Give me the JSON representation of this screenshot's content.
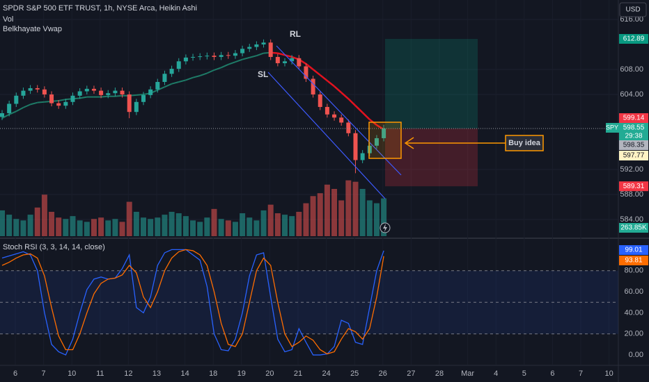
{
  "chart_data": [
    {
      "type": "candlestick",
      "title": "SPDR S&P 500 ETF TRUST, 1h, NYSE Arca, Heikin Ashi",
      "symbol": "SPY",
      "currency": "USD",
      "countdown": "29:38",
      "xticks": [
        "6",
        "7",
        "10",
        "11",
        "12",
        "13",
        "14",
        "18",
        "19",
        "20",
        "21",
        "24",
        "25",
        "26",
        "27",
        "28",
        "Mar",
        "4",
        "5",
        "6",
        "7",
        "10"
      ],
      "open": [
        600.4,
        601.0,
        602.5,
        603.8,
        604.6,
        605.0,
        604.8,
        604.0,
        602.6,
        602.2,
        602.8,
        603.8,
        604.5,
        604.9,
        604.6,
        603.9,
        604.2,
        604.6,
        604.0,
        601.2,
        602.8,
        603.9,
        604.8,
        606.0,
        607.3,
        608.1,
        609.3,
        609.9,
        610.0,
        610.1,
        610.2,
        610.0,
        610.3,
        610.2,
        610.6,
        611.3,
        611.6,
        612.0,
        612.3,
        610.0,
        609.0,
        609.3,
        609.8,
        608.5,
        606.5,
        604.0,
        602.0,
        600.8,
        600.3,
        599.5,
        597.8,
        593.5,
        594.6,
        595.8,
        597.0
      ],
      "high": [
        601.5,
        603.0,
        604.3,
        605.1,
        605.5,
        605.5,
        605.3,
        604.5,
        603.1,
        603.3,
        604.3,
        605.0,
        605.4,
        605.4,
        605.1,
        604.7,
        605.1,
        605.1,
        604.5,
        603.3,
        604.4,
        605.3,
        606.5,
        607.8,
        608.6,
        609.8,
        610.4,
        610.5,
        610.6,
        610.7,
        610.7,
        610.8,
        610.8,
        611.1,
        611.8,
        612.1,
        612.5,
        612.8,
        612.8,
        610.5,
        609.8,
        610.3,
        610.3,
        609.0,
        607.0,
        604.5,
        602.5,
        601.3,
        600.8,
        600.0,
        598.3,
        595.1,
        596.3,
        597.5,
        599.14
      ],
      "low": [
        599.9,
        600.5,
        602.0,
        603.3,
        604.1,
        604.3,
        603.5,
        602.1,
        601.7,
        601.7,
        602.3,
        603.3,
        604.0,
        604.1,
        603.4,
        603.4,
        603.7,
        603.5,
        600.2,
        600.7,
        602.3,
        603.4,
        604.3,
        605.5,
        606.8,
        607.6,
        608.8,
        609.4,
        609.5,
        609.6,
        609.5,
        609.5,
        609.7,
        609.7,
        610.1,
        610.8,
        611.1,
        611.5,
        609.5,
        608.5,
        608.5,
        608.8,
        608.0,
        606.0,
        603.5,
        601.5,
        600.3,
        599.8,
        599.0,
        597.3,
        591.4,
        593.0,
        594.1,
        595.3,
        596.5
      ],
      "close": [
        601.0,
        602.5,
        603.8,
        604.6,
        605.0,
        604.8,
        604.0,
        602.6,
        602.2,
        602.8,
        603.8,
        604.5,
        604.9,
        604.6,
        603.9,
        604.2,
        604.6,
        604.0,
        601.2,
        602.8,
        603.9,
        604.8,
        606.0,
        607.3,
        608.1,
        609.3,
        609.9,
        610.0,
        610.1,
        610.2,
        610.0,
        610.3,
        610.2,
        610.6,
        611.3,
        611.6,
        612.0,
        612.3,
        610.0,
        609.0,
        609.3,
        609.8,
        608.5,
        606.5,
        604.0,
        602.0,
        600.8,
        600.3,
        599.5,
        597.8,
        593.5,
        594.6,
        595.8,
        597.0,
        598.55
      ],
      "up_color": "#26a69a",
      "down_color": "#ef5350",
      "volume": {
        "name": "Vol",
        "ylim": [
          0,
          1650
        ],
        "values": [
          180,
          150,
          120,
          110,
          150,
          200,
          290,
          170,
          130,
          120,
          140,
          110,
          100,
          120,
          130,
          110,
          120,
          100,
          240,
          170,
          130,
          120,
          130,
          150,
          170,
          160,
          140,
          110,
          100,
          130,
          190,
          120,
          110,
          100,
          160,
          130,
          110,
          180,
          220,
          160,
          150,
          140,
          170,
          230,
          280,
          300,
          360,
          330,
          250,
          390,
          380,
          330,
          250,
          230,
          263.85
        ],
        "last_label": "263.85K"
      },
      "vwap": {
        "name": "Belkhayate Vwap",
        "color": "#1e7b67",
        "down_color": "#e3121f",
        "values": [
          600.2,
          600.8,
          601.3,
          601.9,
          602.4,
          602.7,
          602.8,
          602.9,
          603.0,
          603.2,
          603.3,
          603.4,
          603.6,
          603.6,
          603.6,
          603.7,
          603.7,
          603.8,
          603.8,
          603.9,
          604.0,
          604.2,
          604.7,
          605.2,
          605.7,
          606.0,
          606.3,
          606.7,
          607.0,
          607.4,
          607.9,
          608.3,
          608.8,
          609.2,
          609.6,
          609.9,
          610.2,
          610.6,
          610.7,
          610.6,
          610.3,
          610.0,
          609.6,
          608.9,
          608.0,
          607.1,
          606.2,
          605.3,
          604.3,
          603.3,
          602.2,
          601.1,
          600.0,
          599.1,
          598.4
        ]
      },
      "ylim": [
        581.33,
        619.11
      ],
      "yticks": [
        {
          "value": 616,
          "label": "616.00"
        },
        {
          "value": 608,
          "label": "608.00"
        },
        {
          "value": 604,
          "label": "604.00"
        },
        {
          "value": 592,
          "label": "592.00"
        },
        {
          "value": 588,
          "label": "588.00"
        },
        {
          "value": 584,
          "label": "584.00"
        }
      ],
      "long_position": {
        "target": 612.89,
        "stop": 589.31
      },
      "price_tags": [
        598.35,
        597.77
      ],
      "annotations": [
        "RL",
        "SL",
        "Buy idea"
      ]
    },
    {
      "type": "line",
      "title": "Stoch RSI (3, 3, 14, 14, close)",
      "series": [
        {
          "color": "#2962ff",
          "values": [
            92,
            94,
            96,
            98,
            95,
            80,
            40,
            10,
            3,
            0,
            15,
            40,
            62,
            72,
            74,
            72,
            73,
            82,
            95,
            45,
            40,
            55,
            85,
            97,
            100,
            100,
            100,
            95,
            90,
            65,
            20,
            5,
            4,
            15,
            40,
            75,
            95,
            97,
            55,
            15,
            3,
            5,
            25,
            12,
            0,
            0,
            1,
            8,
            33,
            30,
            12,
            10,
            45,
            80,
            99.01
          ]
        },
        {
          "color": "#ff6d00",
          "values": [
            85,
            88,
            92,
            95,
            96,
            92,
            75,
            45,
            18,
            5,
            5,
            20,
            40,
            58,
            68,
            72,
            73,
            76,
            85,
            78,
            55,
            45,
            60,
            80,
            92,
            98,
            100,
            99,
            95,
            85,
            60,
            30,
            10,
            8,
            20,
            50,
            80,
            92,
            85,
            50,
            20,
            8,
            12,
            18,
            14,
            5,
            1,
            3,
            15,
            25,
            22,
            15,
            25,
            55,
            93.81
          ]
        }
      ],
      "ylim": [
        -9.2,
        109.5
      ],
      "yticks": [
        {
          "value": 80,
          "label": "80.00"
        },
        {
          "value": 60,
          "label": "60.00"
        },
        {
          "value": 40,
          "label": "40.00"
        },
        {
          "value": 20,
          "label": "20.00"
        },
        {
          "value": 0,
          "label": "0.00"
        }
      ],
      "band": [
        20,
        80
      ],
      "midline": 50
    }
  ]
}
